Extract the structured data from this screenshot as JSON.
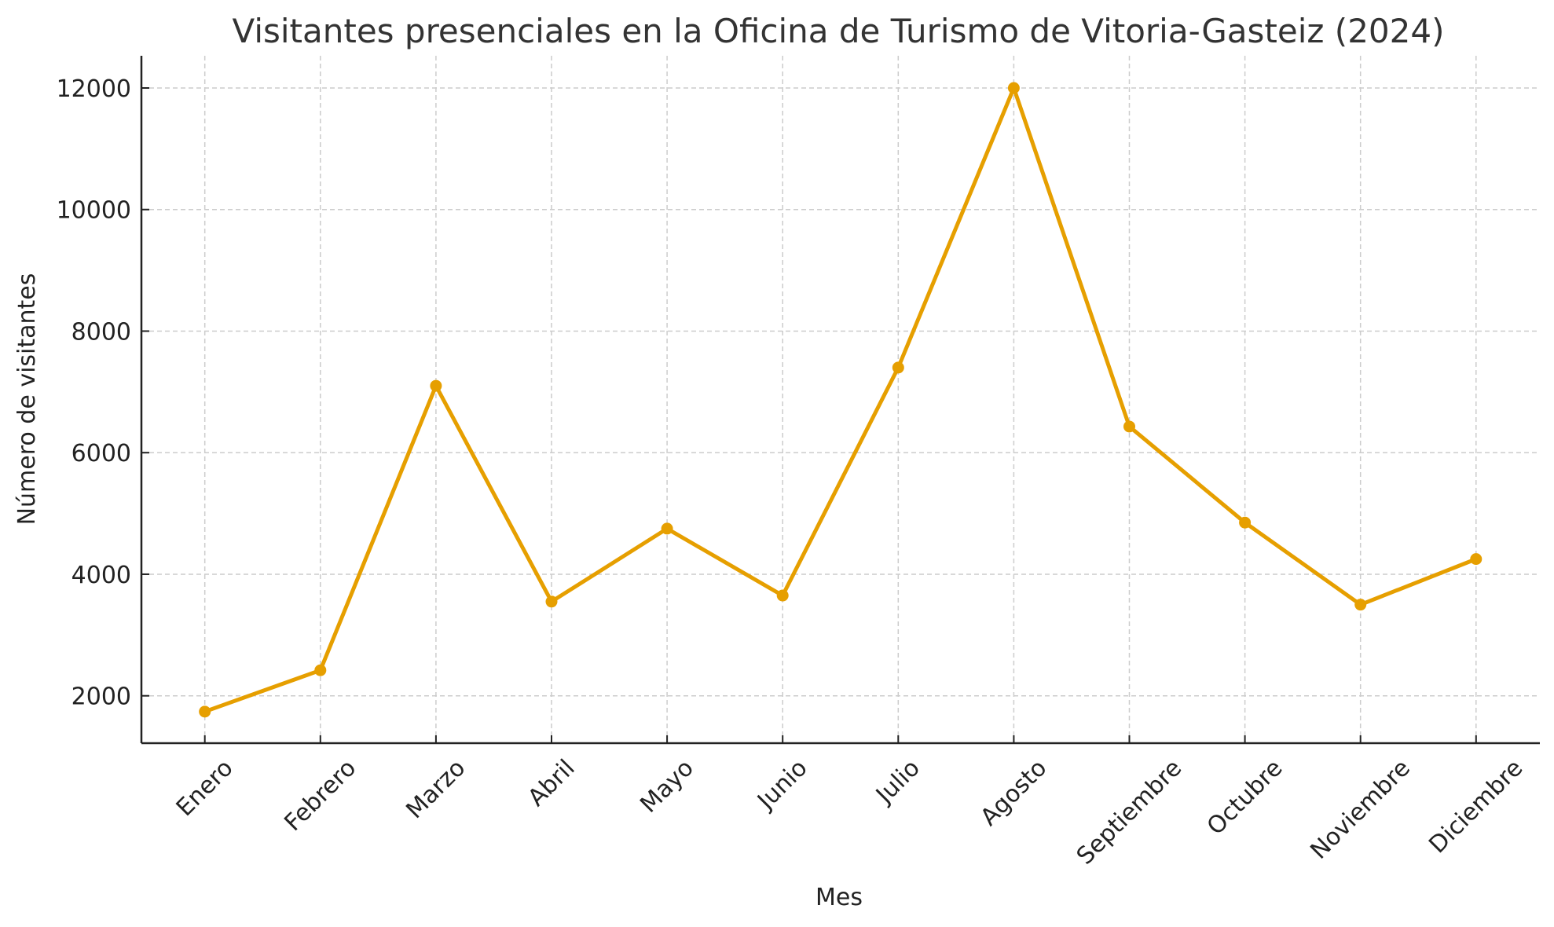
{
  "chart_data": {
    "type": "line",
    "title": "Visitantes presenciales en la Oficina de Turismo de Vitoria-Gasteiz (2024)",
    "xlabel": "Mes",
    "ylabel": "Número de visitantes",
    "categories": [
      "Enero",
      "Febrero",
      "Marzo",
      "Abril",
      "Mayo",
      "Junio",
      "Julio",
      "Agosto",
      "Septiembre",
      "Octubre",
      "Noviembre",
      "Diciembre"
    ],
    "series": [
      {
        "name": "Visitantes",
        "color": "#E69F00",
        "marker": "circle",
        "values": [
          1740,
          2420,
          7100,
          3550,
          4750,
          3650,
          7400,
          12000,
          6430,
          4850,
          3500,
          4250
        ]
      }
    ],
    "yticks": [
      2000,
      4000,
      6000,
      8000,
      10000,
      12000
    ],
    "ylim": [
      1240,
      12500
    ],
    "grid": true,
    "grid_style": "dashed",
    "legend": null,
    "xtick_rotation": 45
  }
}
